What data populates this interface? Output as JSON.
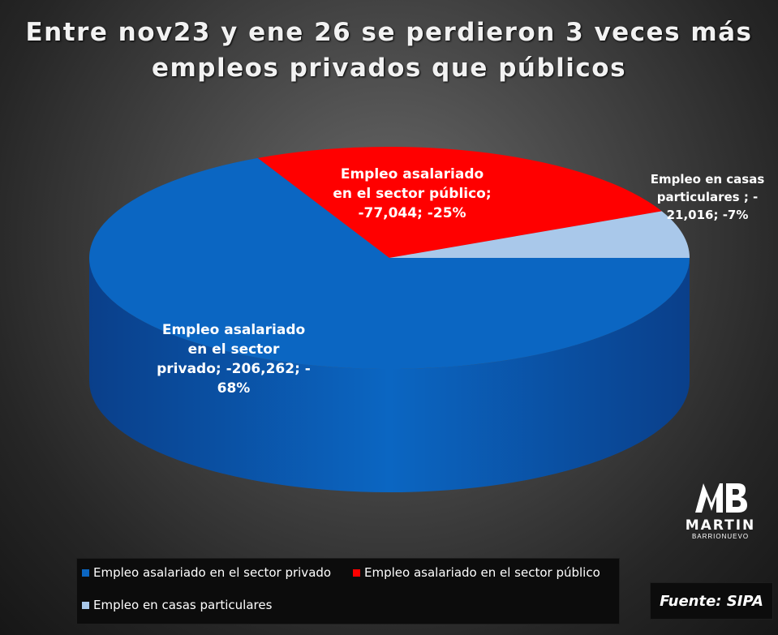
{
  "title_line1": "Entre nov23 y ene 26 se perdieron 3 veces más",
  "title_line2": "empleos privados que públicos",
  "chart_data": {
    "type": "pie",
    "title": "Entre nov23 y ene 26 se perdieron 3 veces más empleos privados que públicos",
    "three_d": true,
    "series": [
      {
        "name": "Empleo asalariado en el sector privado",
        "value": -206262,
        "percent": -68,
        "color": "#0b66c2",
        "side_color": "#0a3f8a"
      },
      {
        "name": "Empleo asalariado en el sector público",
        "value": -77044,
        "percent": -25,
        "color": "#ff0000",
        "side_color": "#b30000"
      },
      {
        "name": "Empleo en casas particulares",
        "value": -21016,
        "percent": -7,
        "color": "#a9c8ea",
        "side_color": "#6f90b8"
      }
    ],
    "data_labels": [
      {
        "lines": [
          "Empleo asalariado",
          "en el sector",
          "privado; -206,262; -",
          "68%"
        ]
      },
      {
        "lines": [
          "Empleo asalariado",
          "en el sector público;",
          "-77,044; -25%"
        ]
      },
      {
        "lines": [
          "Empleo en casas",
          "particulares ; -",
          "21,016; -7%"
        ]
      }
    ],
    "legend_position": "bottom"
  },
  "logo": {
    "name": "MARTIN",
    "sub": "BARRIONUEVO"
  },
  "source": "Fuente: SIPA"
}
